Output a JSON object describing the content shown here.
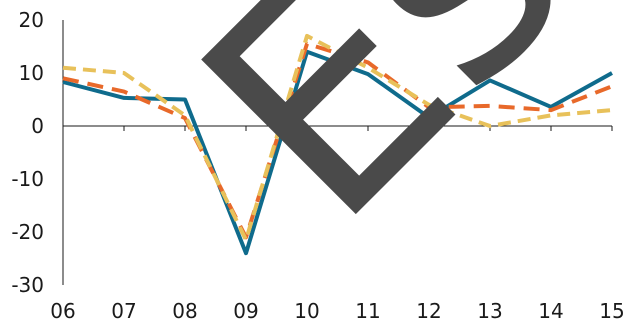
{
  "chart_data": {
    "type": "line",
    "title": "",
    "xlabel": "",
    "ylabel": "",
    "categories": [
      "06",
      "07",
      "08",
      "09",
      "10",
      "11",
      "12",
      "13",
      "14",
      "15"
    ],
    "ylim": [
      -30,
      20
    ],
    "yticks": [
      20,
      10,
      0,
      -10,
      -20,
      -30
    ],
    "grid": false,
    "legend": "none",
    "series": [
      {
        "color": "#0f6b8c",
        "dash": "solid",
        "values": [
          8.3,
          5.3,
          5.0,
          -24.0,
          14.0,
          9.8,
          1.6,
          8.6,
          3.6,
          10.0
        ]
      },
      {
        "color": "#e8692a",
        "dash": "dashed",
        "values": [
          9.0,
          6.5,
          1.5,
          -21.0,
          15.5,
          12.0,
          3.5,
          3.8,
          3.0,
          7.5
        ]
      },
      {
        "color": "#e8c15a",
        "dash": "dotted-dash",
        "values": [
          11.0,
          10.0,
          2.0,
          -21.5,
          17.0,
          11.0,
          4.0,
          0.0,
          2.0,
          3.0
        ]
      }
    ],
    "watermark": {
      "text": "Esc",
      "color": "#4a4a4a"
    }
  }
}
